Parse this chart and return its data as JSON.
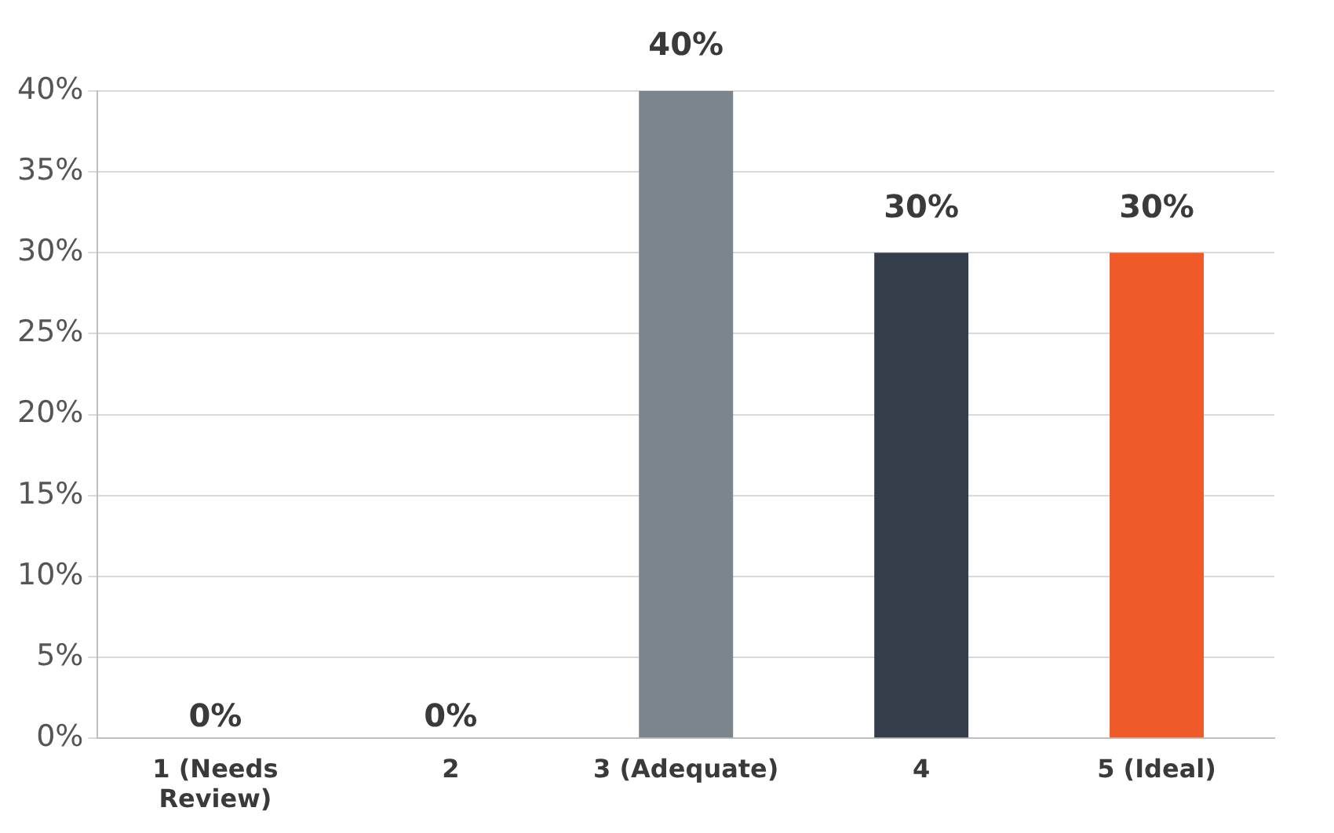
{
  "chart_data": {
    "type": "bar",
    "categories": [
      "1 (Needs Review)",
      "2",
      "3 (Adequate)",
      "4",
      "5 (Ideal)"
    ],
    "values": [
      0,
      0,
      40,
      30,
      30
    ],
    "colors": [
      "#b8411f",
      "#4a8a8c",
      "#7a858e",
      "#343d4a",
      "#f05a28"
    ],
    "value_labels": [
      "0%",
      "0%",
      "40%",
      "30%",
      "30%"
    ],
    "ylim": [
      0,
      40
    ],
    "yticks": [
      {
        "value": 0,
        "label": "0%"
      },
      {
        "value": 5,
        "label": "5%"
      },
      {
        "value": 10,
        "label": "10%"
      },
      {
        "value": 15,
        "label": "15%"
      },
      {
        "value": 20,
        "label": "20%"
      },
      {
        "value": 25,
        "label": "25%"
      },
      {
        "value": 30,
        "label": "30%"
      },
      {
        "value": 35,
        "label": "35%"
      },
      {
        "value": 40,
        "label": "40%"
      }
    ],
    "grid": "y",
    "legend": false
  }
}
